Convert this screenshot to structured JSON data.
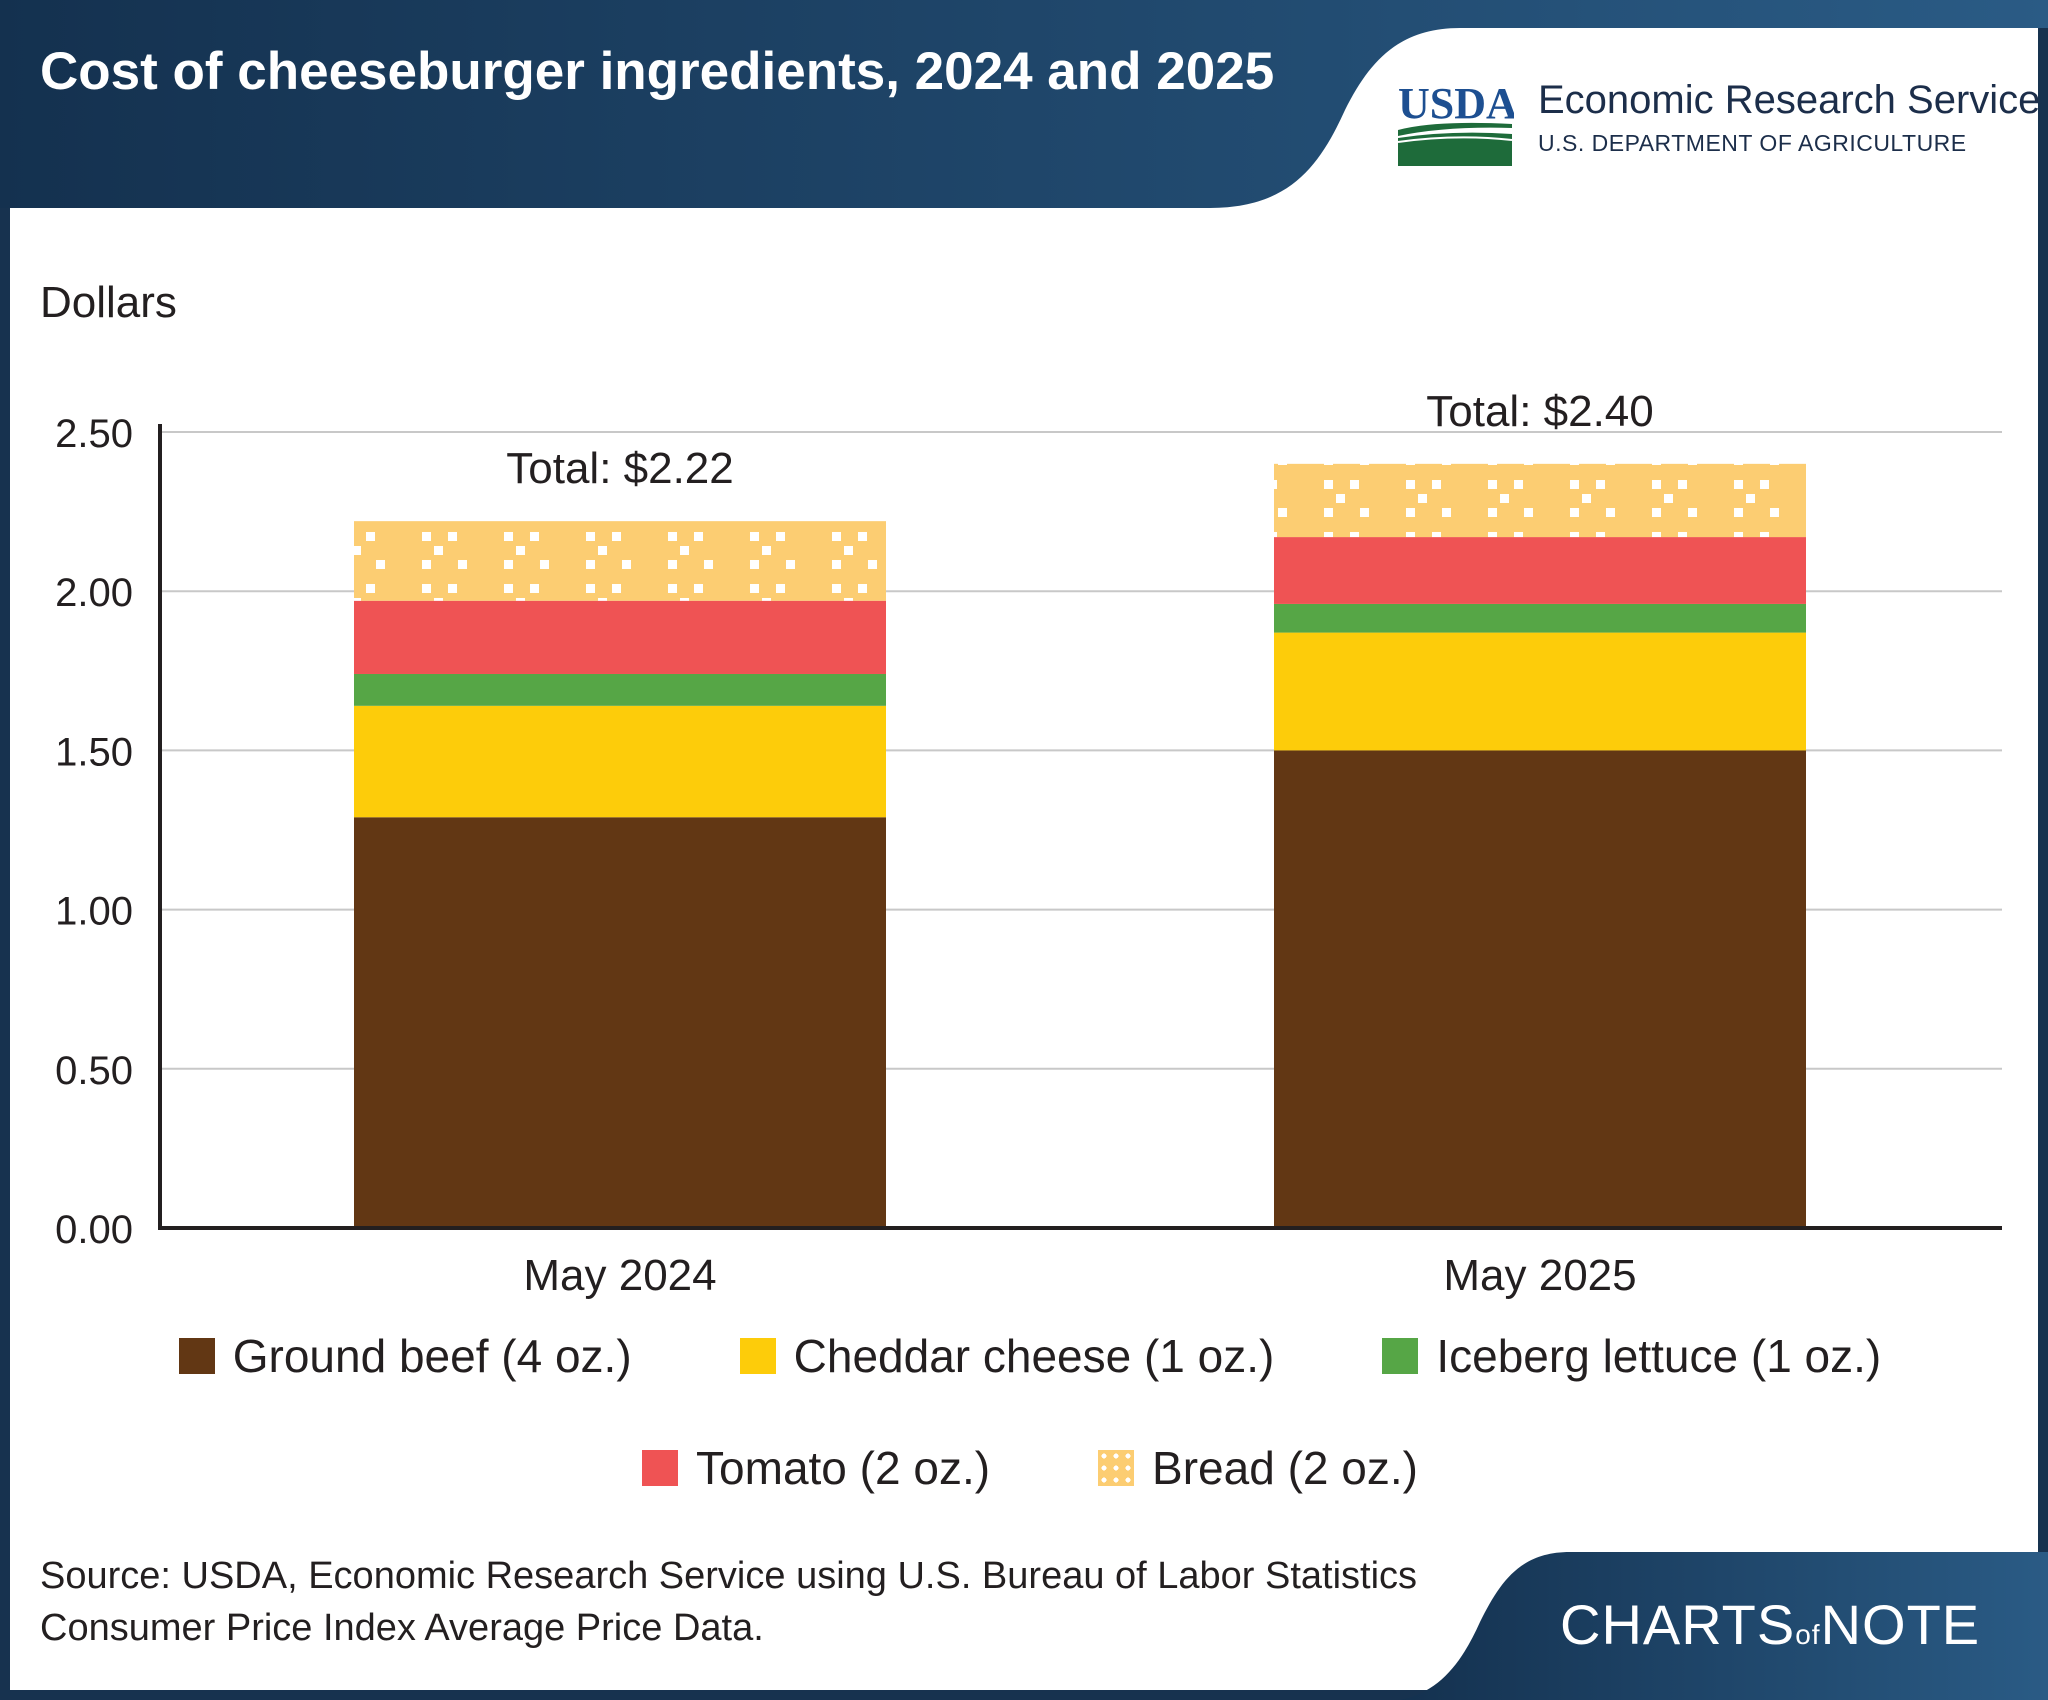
{
  "header": {
    "title": "Cost of cheeseburger ingredients, 2024 and 2025",
    "logo_text": "USDA",
    "agency": "Economic Research Service",
    "department": "U.S. DEPARTMENT OF AGRICULTURE"
  },
  "chart_data": {
    "type": "bar",
    "stacked": true,
    "ylabel": "Dollars",
    "ylim": [
      0,
      2.5
    ],
    "yticks": [
      "0.00",
      "0.50",
      "1.00",
      "1.50",
      "2.00",
      "2.50"
    ],
    "grid": true,
    "categories": [
      "May 2024",
      "May 2025"
    ],
    "totals": [
      "Total: $2.22",
      "Total: $2.40"
    ],
    "series": [
      {
        "name": "Ground beef (4 oz.)",
        "color": "#623714",
        "values": [
          1.29,
          1.5
        ]
      },
      {
        "name": "Cheddar cheese (1 oz.)",
        "color": "#fdcc0a",
        "values": [
          0.35,
          0.37
        ]
      },
      {
        "name": "Iceberg lettuce (1 oz.)",
        "color": "#56a646",
        "values": [
          0.1,
          0.09
        ]
      },
      {
        "name": "Tomato (2 oz.)",
        "color": "#ef5354",
        "values": [
          0.23,
          0.21
        ]
      },
      {
        "name": "Bread (2 oz.)",
        "color": "#fccd72",
        "pattern": "dots",
        "values": [
          0.25,
          0.23
        ]
      }
    ],
    "legend_position": "bottom"
  },
  "footer": {
    "source": "Source: USDA, Economic Research Service using U.S. Bureau of Labor Statistics Consumer Price Index Average Price Data.",
    "brand_left": "CHARTS",
    "brand_of": "of",
    "brand_right": "NOTE"
  },
  "colors": {
    "header_dark": "#14314f",
    "header_light": "#2a5b85",
    "logo_blue": "#1d4f91",
    "logo_green": "#1e6b3a"
  }
}
